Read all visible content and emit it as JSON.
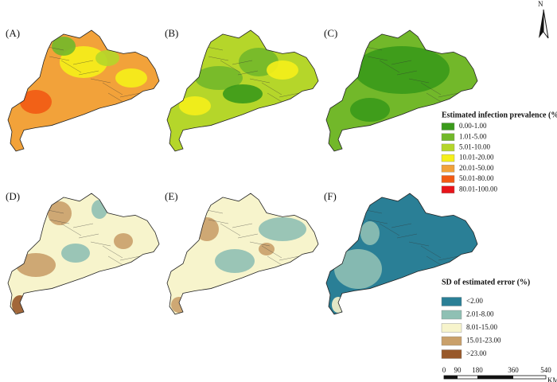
{
  "panels": [
    "(A)",
    "(B)",
    "(C)",
    "(D)",
    "(E)",
    "(F)"
  ],
  "legend_prevalence": {
    "title": "Estimated infection prevalence (%)",
    "items": [
      {
        "label": "0.00-1.00",
        "color": "#3a9a1a"
      },
      {
        "label": "1.01-5.00",
        "color": "#72b82a"
      },
      {
        "label": "5.01-10.00",
        "color": "#b5d62a"
      },
      {
        "label": "10.01-20.00",
        "color": "#f5ef1a"
      },
      {
        "label": "20.01-50.00",
        "color": "#f2a23a"
      },
      {
        "label": "50.01-80.00",
        "color": "#f25a14"
      },
      {
        "label": "80.01-100.00",
        "color": "#e8141a"
      }
    ]
  },
  "legend_error": {
    "title": "SD of estimated error (%)",
    "items": [
      {
        "label": "<2.00",
        "color": "#2a7f96"
      },
      {
        "label": "2.01-8.00",
        "color": "#8fc0b4"
      },
      {
        "label": "8.01-15.00",
        "color": "#f7f4cc"
      },
      {
        "label": "15.01-23.00",
        "color": "#c9a06a"
      },
      {
        "label": ">23.00",
        "color": "#98582a"
      }
    ]
  },
  "scale_bar": {
    "ticks": [
      "0",
      "90",
      "180",
      "360",
      "540"
    ],
    "unit": "KM"
  },
  "north": "N"
}
